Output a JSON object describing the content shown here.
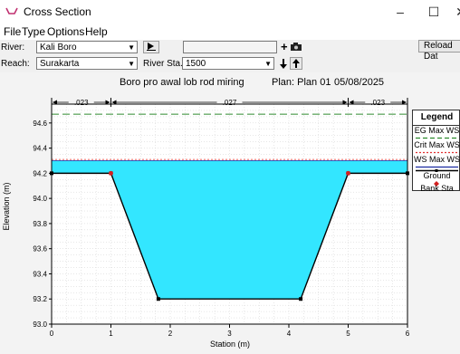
{
  "window": {
    "title": "Cross Section"
  },
  "menu": [
    "File",
    "Type",
    "Options",
    "Help"
  ],
  "toolbar": {
    "river_label": "River:",
    "river_value": "Kali Boro",
    "reach_label": "Reach:",
    "reach_value": "Surakarta",
    "river_sta_label": "River Sta.:",
    "river_sta_value": "1500",
    "reload_label": "Reload Dat"
  },
  "plot": {
    "title": "Boro pro awal lob rod miring",
    "plan": "Plan: Plan 01",
    "date": "05/08/2025",
    "xlabel": "Station (m)",
    "ylabel": "Elevation (m)",
    "manning": [
      ".023",
      ".027",
      ".023"
    ]
  },
  "legend": {
    "title": "Legend",
    "items": [
      "EG Max WS",
      "Crit Max WS",
      "WS Max WS",
      "Ground",
      "Bank Sta"
    ]
  },
  "colors": {
    "water": "#33e6ff",
    "eg": "#2d8a2d",
    "crit": "#e03030",
    "ground": "#000000",
    "bank": "#d42020"
  },
  "chart_data": {
    "type": "area",
    "x_ticks": [
      0,
      1,
      2,
      3,
      4,
      5,
      6
    ],
    "y_ticks": [
      93.0,
      93.2,
      93.4,
      93.6,
      93.8,
      94.0,
      94.2,
      94.4,
      94.6
    ],
    "xlim": [
      0,
      6
    ],
    "ylim": [
      93.0,
      94.75
    ],
    "ground": {
      "x": [
        0,
        1,
        1.8,
        4.2,
        5,
        6
      ],
      "y": [
        94.2,
        94.2,
        93.2,
        93.2,
        94.2,
        94.2
      ]
    },
    "bank_stations": [
      1,
      5
    ],
    "eg_max_ws": 94.67,
    "crit_max_ws": 94.31,
    "ws_max_ws": 94.3,
    "manning_breaks": [
      0,
      1,
      5,
      6
    ]
  }
}
